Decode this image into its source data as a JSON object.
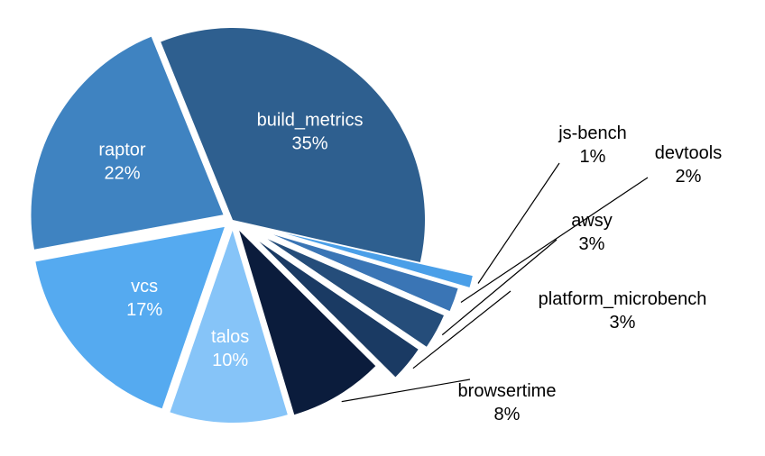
{
  "chart_data": {
    "type": "pie",
    "title": "",
    "categories": [
      "build_metrics",
      "js-bench",
      "devtools",
      "awsy",
      "platform_microbench",
      "browsertime",
      "talos",
      "vcs",
      "raptor"
    ],
    "values": [
      35,
      1,
      2,
      3,
      3,
      8,
      10,
      17,
      22
    ],
    "labels": [
      "35%",
      "1%",
      "2%",
      "3%",
      "3%",
      "8%",
      "10%",
      "17%",
      "22%"
    ],
    "colors": [
      "#2e5f8f",
      "#4a9fe8",
      "#3a75b5",
      "#254d7a",
      "#1a3a63",
      "#0b1c3c",
      "#86c4f8",
      "#55aaf0",
      "#3f83c1"
    ],
    "label_colors": [
      "#ffffff",
      "#000000",
      "#000000",
      "#000000",
      "#000000",
      "#000000",
      "#ffffff",
      "#ffffff",
      "#ffffff"
    ],
    "legend": "none",
    "exploded": true
  }
}
